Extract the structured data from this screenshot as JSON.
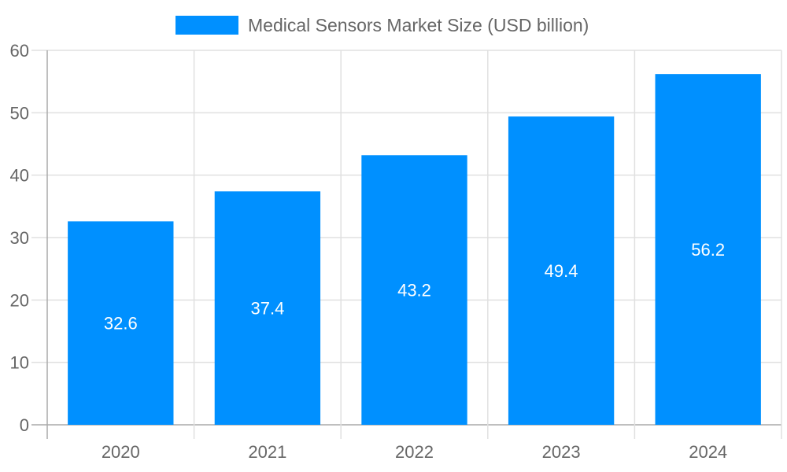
{
  "chart_data": {
    "type": "bar",
    "categories": [
      "2020",
      "2021",
      "2022",
      "2023",
      "2024"
    ],
    "series": [
      {
        "name": "Medical Sensors Market Size (USD billion)",
        "values": [
          32.6,
          37.4,
          43.2,
          49.4,
          56.2
        ],
        "color": "#0090FF"
      }
    ],
    "data_labels": [
      "32.6",
      "37.4",
      "43.2",
      "49.4",
      "56.2"
    ],
    "yticks": [
      "0",
      "10",
      "20",
      "30",
      "40",
      "50",
      "60"
    ],
    "ylim": [
      0,
      60
    ],
    "grid": true,
    "legend_position": "top"
  }
}
